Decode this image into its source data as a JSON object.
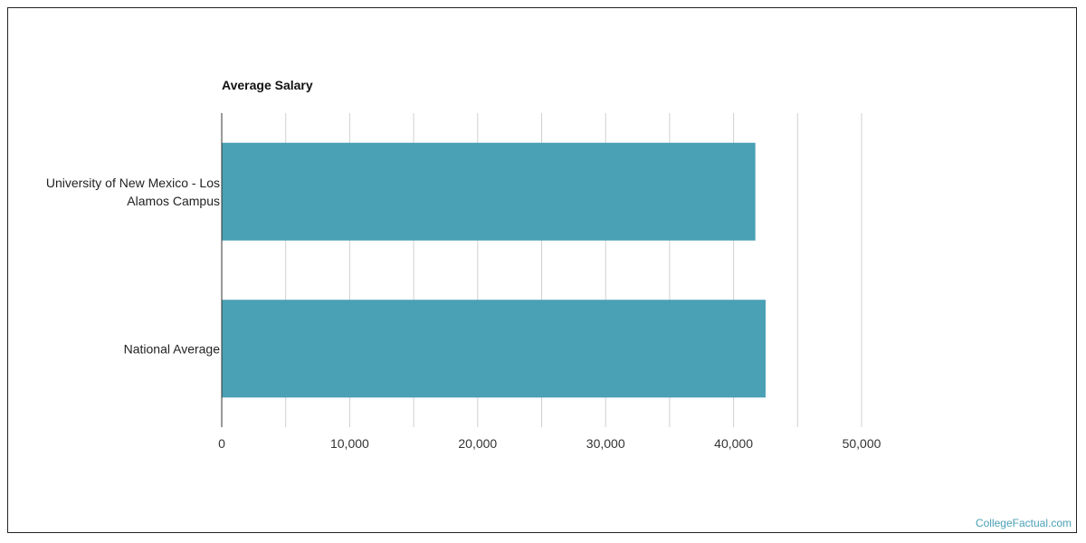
{
  "chart_data": {
    "type": "bar",
    "orientation": "horizontal",
    "title": "Average Salary",
    "categories": [
      [
        "University of New Mexico - Los",
        "Alamos Campus"
      ],
      [
        "National Average"
      ]
    ],
    "values": [
      41700,
      42500
    ],
    "ticks": [
      0,
      10000,
      20000,
      30000,
      40000,
      50000
    ],
    "tick_labels": [
      "0",
      "10,000",
      "20,000",
      "30,000",
      "40,000",
      "50,000"
    ],
    "xlim": [
      0,
      50000
    ],
    "grid": true,
    "bar_color": "#4aa0b5",
    "grid_color": "#d0d0d0",
    "axis_color": "#333333"
  },
  "footer": {
    "watermark": "CollegeFactual.com"
  }
}
